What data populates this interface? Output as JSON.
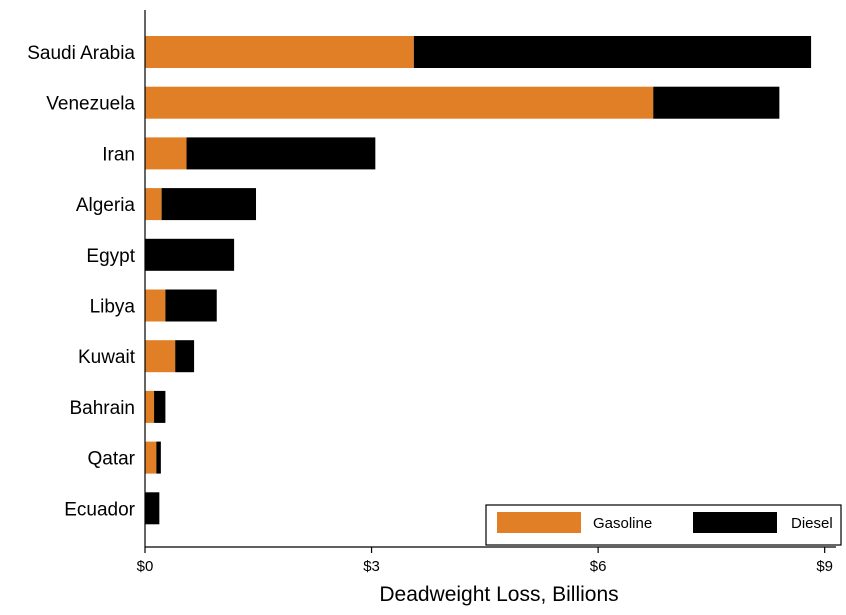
{
  "chart_data": {
    "type": "bar",
    "orientation": "horizontal",
    "stacked": true,
    "categories": [
      "Saudi Arabia",
      "Venezuela",
      "Iran",
      "Algeria",
      "Egypt",
      "Libya",
      "Kuwait",
      "Bahrain",
      "Qatar",
      "Ecuador"
    ],
    "series": [
      {
        "name": "Gasoline",
        "color": "#e07f26",
        "values": [
          3.56,
          6.73,
          0.55,
          0.22,
          0.0,
          0.27,
          0.4,
          0.12,
          0.15,
          0.0
        ]
      },
      {
        "name": "Diesel",
        "color": "#000000",
        "values": [
          5.26,
          1.67,
          2.5,
          1.25,
          1.18,
          0.68,
          0.25,
          0.15,
          0.06,
          0.19
        ]
      }
    ],
    "xlabel": "Deadweight Loss, Billions",
    "ylabel": "",
    "title": "",
    "xlim": [
      0,
      9.15
    ],
    "xticks": [
      0,
      3,
      6,
      9
    ],
    "xtick_labels": [
      "$0",
      "$3",
      "$6",
      "$9"
    ],
    "grid": false,
    "legend_position": "bottom-right"
  }
}
